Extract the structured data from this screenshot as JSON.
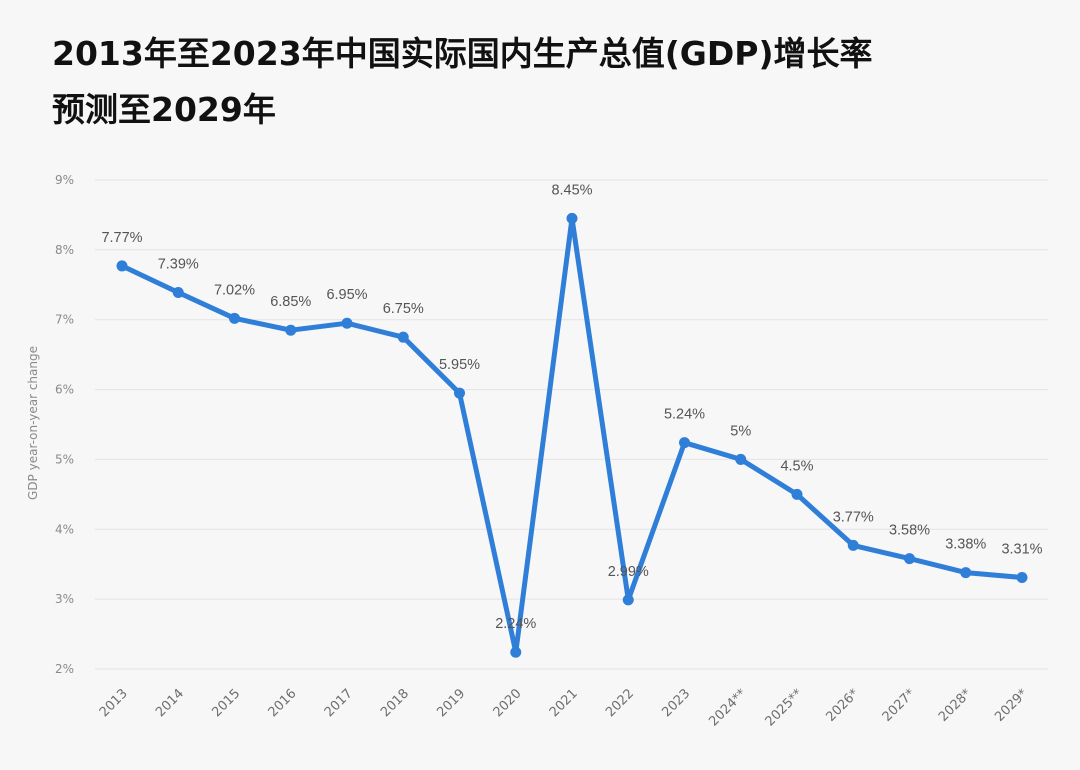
{
  "title": {
    "line1": "2013年至2023年中国实际国内生产总值(GDP)增长率",
    "line2": "预测至2029年"
  },
  "chart_data": {
    "type": "line",
    "title": "2013年至2023年中国实际国内生产总值(GDP)增长率 预测至2029年",
    "ylabel": "GDP year-on-year change",
    "xlabel": "",
    "ylim": [
      2,
      9
    ],
    "yticks": [
      "2%",
      "3%",
      "4%",
      "5%",
      "6%",
      "7%",
      "8%",
      "9%"
    ],
    "grid": true,
    "categories": [
      "2013",
      "2014",
      "2015",
      "2016",
      "2017",
      "2018",
      "2019",
      "2020",
      "2021",
      "2022",
      "2023",
      "2024**",
      "2025**",
      "2026*",
      "2027*",
      "2028*",
      "2029*"
    ],
    "series": [
      {
        "values": [
          7.77,
          7.39,
          7.02,
          6.85,
          6.95,
          6.75,
          5.95,
          2.24,
          8.45,
          2.99,
          5.24,
          5,
          4.5,
          3.77,
          3.58,
          3.38,
          3.31
        ],
        "labels": [
          "7.77%",
          "7.39%",
          "7.02%",
          "6.85%",
          "6.95%",
          "6.75%",
          "5.95%",
          "2.24%",
          "8.45%",
          "2.99%",
          "5.24%",
          "5%",
          "4.5%",
          "3.77%",
          "3.58%",
          "3.38%",
          "3.31%"
        ],
        "color": "#2f7ed8"
      }
    ]
  }
}
